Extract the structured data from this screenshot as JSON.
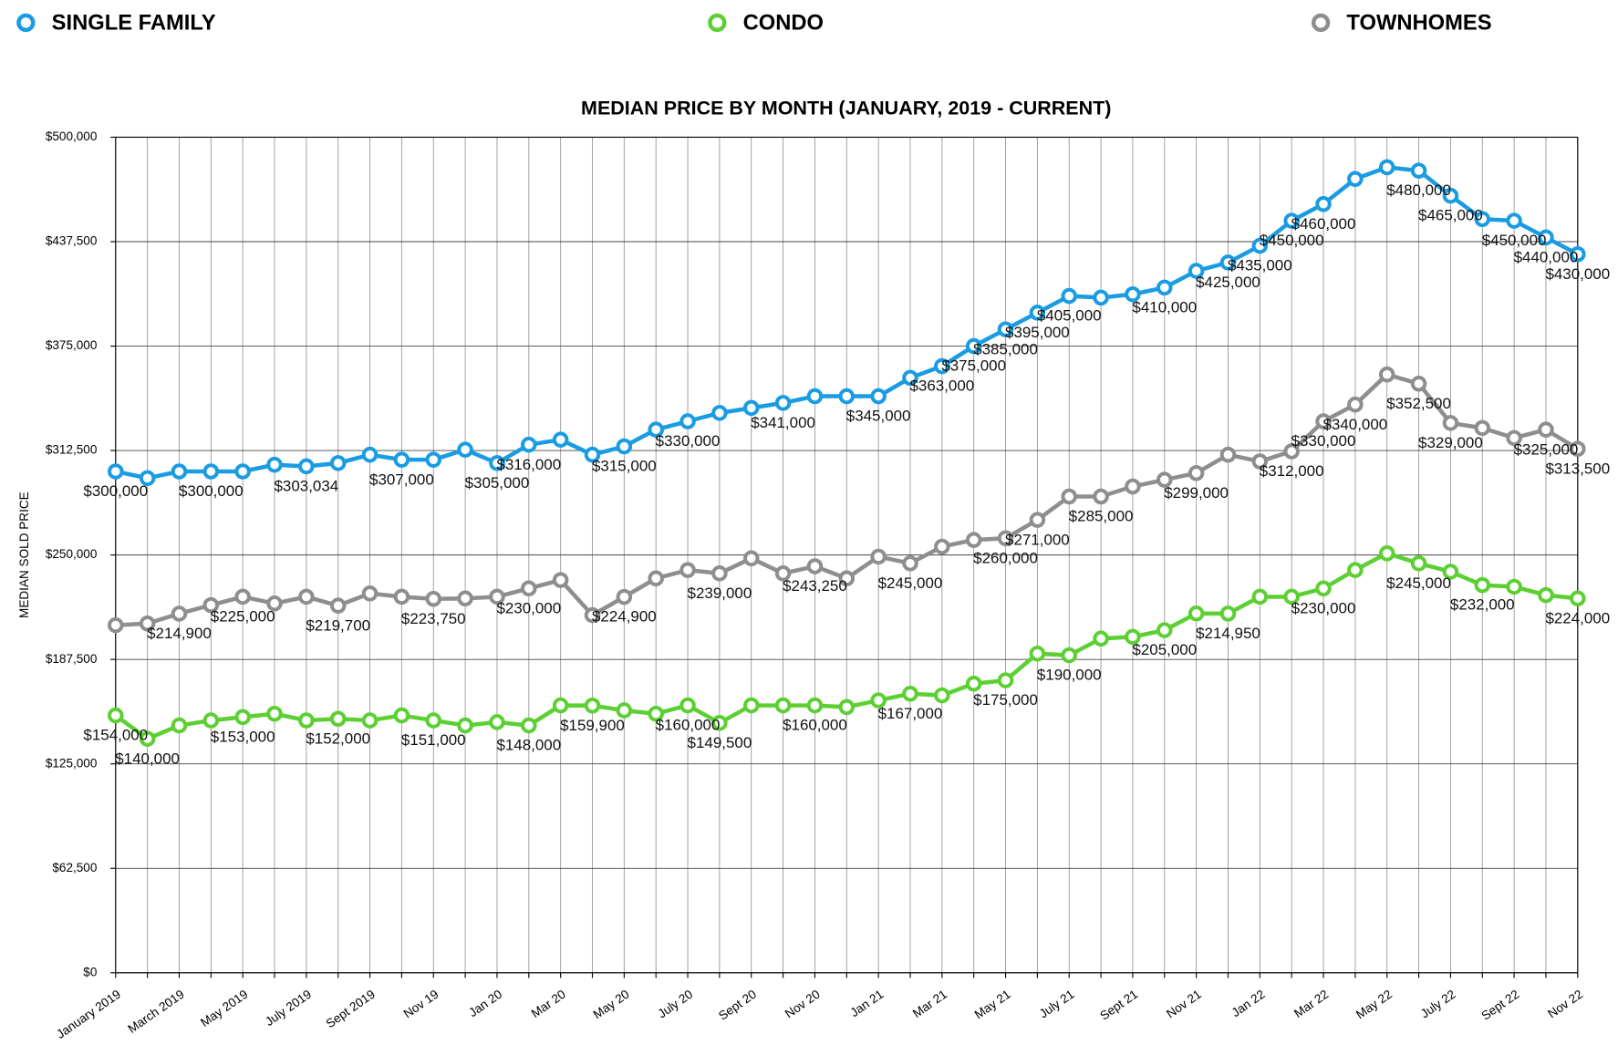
{
  "chart_data": {
    "type": "line",
    "title": "MEDIAN PRICE BY MONTH (JANUARY, 2019 - CURRENT)",
    "y_label": "MEDIAN SOLD PRICE",
    "legend": "top",
    "grid": true,
    "categories": [
      "January 2019",
      null,
      "March 2019",
      null,
      "May 2019",
      null,
      "July 2019",
      null,
      "Sept 2019",
      null,
      "Nov 19",
      null,
      "Jan 20",
      null,
      "Mar 20",
      null,
      "May 20",
      null,
      "July 20",
      null,
      "Sept 20",
      null,
      "Nov 20",
      null,
      "Jan 21",
      null,
      "Mar 21",
      null,
      "May 21",
      null,
      "July 21",
      null,
      "Sept 21",
      null,
      "Nov 21",
      null,
      "Jan 22",
      null,
      "Mar 22",
      null,
      "May 22",
      null,
      "July 22",
      null,
      "Sept 22",
      null,
      "Nov 22"
    ],
    "ylim": [
      0,
      500000
    ],
    "yticks": [
      {
        "value": 0,
        "label": "$0"
      },
      {
        "value": 62500,
        "label": "$62,500"
      },
      {
        "value": 125000,
        "label": "$125,000"
      },
      {
        "value": 187500,
        "label": "$187,500"
      },
      {
        "value": 250000,
        "label": "$250,000"
      },
      {
        "value": 312500,
        "label": "$312,500"
      },
      {
        "value": 375000,
        "label": "$375,000"
      },
      {
        "value": 437500,
        "label": "$437,500"
      },
      {
        "value": 500000,
        "label": "$500,000"
      }
    ],
    "series": [
      {
        "name": "SINGLE FAMILY",
        "color": "#1a9ce2",
        "values": [
          300000,
          296000,
          300000,
          300000,
          300000,
          304000,
          303034,
          305000,
          310000,
          307000,
          307000,
          313000,
          305000,
          316000,
          319000,
          310000,
          315000,
          325000,
          330000,
          335000,
          338000,
          341000,
          345000,
          345000,
          345000,
          356000,
          363000,
          375000,
          385000,
          395000,
          405000,
          404000,
          406000,
          410000,
          420000,
          425000,
          435000,
          450000,
          460000,
          475000,
          482000,
          480000,
          465000,
          451000,
          450000,
          440000,
          430000
        ],
        "value_labels": [
          "$300,000",
          null,
          null,
          "$300,000",
          null,
          null,
          "$303,034",
          null,
          null,
          "$307,000",
          null,
          null,
          "$305,000",
          "$316,000",
          null,
          null,
          "$315,000",
          null,
          "$330,000",
          null,
          null,
          "$341,000",
          null,
          null,
          "$345,000",
          null,
          "$363,000",
          "$375,000",
          "$385,000",
          "$395,000",
          "$405,000",
          null,
          null,
          "$410,000",
          null,
          "$425,000",
          "$435,000",
          "$450,000",
          "$460,000",
          null,
          null,
          "$480,000",
          "$465,000",
          null,
          "$450,000",
          "$440,000",
          "$430,000"
        ]
      },
      {
        "name": "CONDO",
        "color": "#5ccf33",
        "values": [
          154000,
          140000,
          148000,
          151000,
          153000,
          155000,
          151000,
          152000,
          151000,
          154000,
          151000,
          148000,
          150000,
          148000,
          160000,
          159900,
          157000,
          155000,
          160000,
          149500,
          160000,
          160000,
          160000,
          159000,
          163000,
          167000,
          166000,
          173000,
          175000,
          191000,
          190000,
          200000,
          201000,
          205000,
          215000,
          214950,
          225000,
          225000,
          230000,
          241000,
          251000,
          245000,
          240000,
          232000,
          231000,
          226000,
          224000
        ],
        "value_labels": [
          "$154,000",
          "$140,000",
          null,
          null,
          "$153,000",
          null,
          null,
          "$152,000",
          null,
          null,
          "$151,000",
          null,
          null,
          "$148,000",
          null,
          "$159,900",
          null,
          null,
          "$160,000",
          "$149,500",
          null,
          null,
          "$160,000",
          null,
          null,
          "$167,000",
          null,
          null,
          "$175,000",
          null,
          "$190,000",
          null,
          null,
          "$205,000",
          null,
          "$214,950",
          null,
          null,
          "$230,000",
          null,
          null,
          "$245,000",
          null,
          "$232,000",
          null,
          null,
          "$224,000"
        ]
      },
      {
        "name": "TOWNHOMES",
        "color": "#8e8e8e",
        "values": [
          208000,
          209000,
          214900,
          220000,
          225000,
          221000,
          225000,
          219700,
          227000,
          225000,
          223750,
          224000,
          225000,
          230000,
          235000,
          214000,
          224900,
          236000,
          241000,
          239000,
          248000,
          239000,
          243250,
          236000,
          249000,
          245000,
          255000,
          259000,
          260000,
          271000,
          285000,
          285000,
          291000,
          295000,
          299000,
          310000,
          306000,
          312000,
          330000,
          340000,
          358000,
          352500,
          329000,
          326000,
          320000,
          325000,
          313500
        ],
        "value_labels": [
          null,
          null,
          "$214,900",
          null,
          "$225,000",
          null,
          null,
          "$219,700",
          null,
          null,
          "$223,750",
          null,
          null,
          "$230,000",
          null,
          null,
          "$224,900",
          null,
          null,
          "$239,000",
          null,
          null,
          "$243,250",
          null,
          null,
          "$245,000",
          null,
          null,
          "$260,000",
          "$271,000",
          null,
          "$285,000",
          null,
          null,
          "$299,000",
          null,
          null,
          "$312,000",
          "$330,000",
          "$340,000",
          null,
          "$352,500",
          "$329,000",
          null,
          null,
          "$325,000",
          "$313,500"
        ]
      }
    ]
  }
}
